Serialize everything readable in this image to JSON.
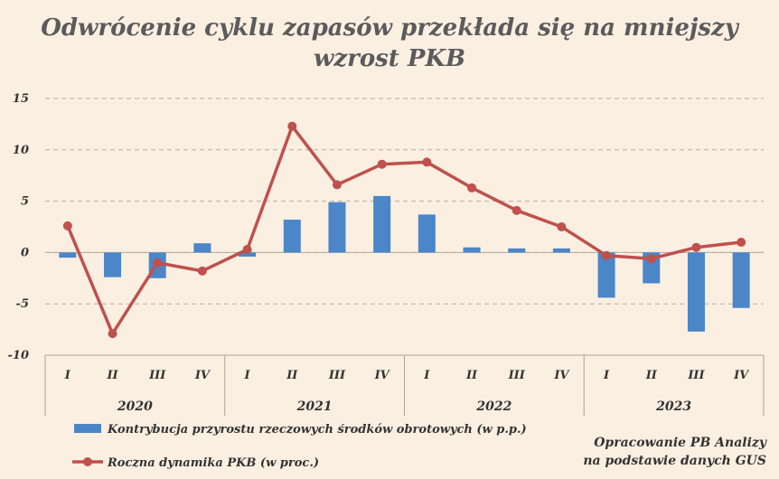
{
  "chart_data": {
    "type": "bar+line",
    "title": [
      "Odwrócenie cyklu zapasów  przekłada się na mniejszy",
      "wzrost PKB"
    ],
    "ylim": [
      -10,
      15
    ],
    "yticks": [
      "-10",
      "-5",
      "0",
      "5",
      "10",
      "15"
    ],
    "ytick_values": [
      -10,
      -5,
      0,
      5,
      10,
      15
    ],
    "grid": true,
    "categories": [
      "I",
      "II",
      "III",
      "IV",
      "I",
      "II",
      "III",
      "IV",
      "I",
      "II",
      "III",
      "IV",
      "I",
      "II",
      "III",
      "IV"
    ],
    "groups": [
      "2020",
      "2021",
      "2022",
      "2023"
    ],
    "series": [
      {
        "name": "Kontrybucja przyrostu rzeczowych środków obrotowych (w p.p.)",
        "type": "bar",
        "color": "#4a86c8",
        "values": [
          -0.5,
          -2.4,
          -2.5,
          0.9,
          -0.4,
          3.2,
          4.9,
          5.5,
          3.7,
          0.5,
          0.4,
          0.4,
          -4.4,
          -3.0,
          -7.7,
          -5.4
        ]
      },
      {
        "name": "Roczna dynamika PKB (w proc.)",
        "type": "line",
        "color": "#c0504d",
        "values": [
          2.6,
          -7.9,
          -1.0,
          -1.8,
          0.3,
          12.3,
          6.6,
          8.6,
          8.8,
          6.3,
          4.1,
          2.5,
          -0.3,
          -0.6,
          0.5,
          1.0
        ]
      }
    ],
    "legend_position": "bottom-left"
  },
  "source": [
    "Opracowanie PB Analizy",
    "na podstawie danych GUS"
  ]
}
